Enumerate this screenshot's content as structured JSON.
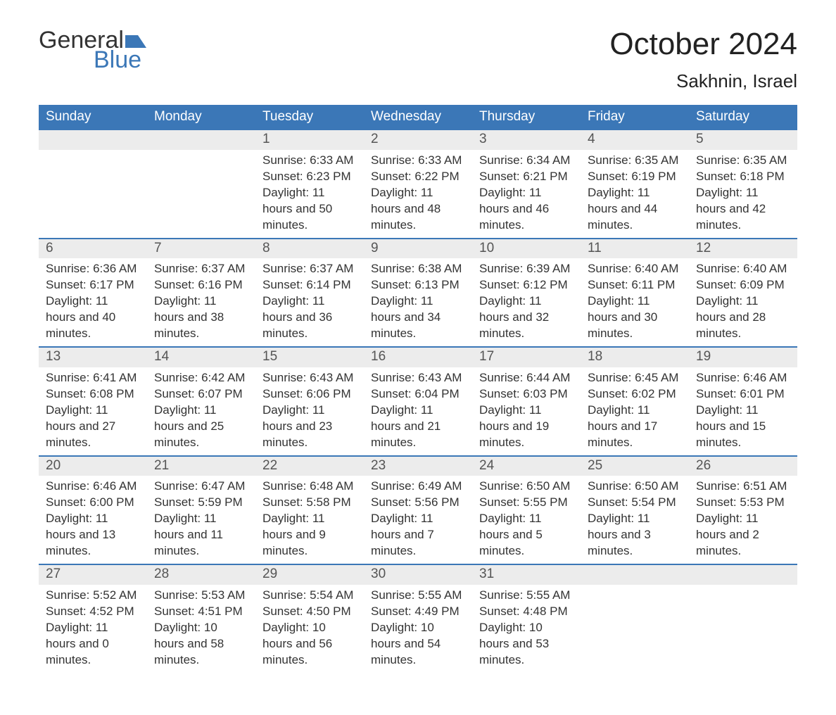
{
  "brand": {
    "word1": "General",
    "word2": "Blue",
    "accent_color": "#3b77b7"
  },
  "title": "October 2024",
  "location": "Sakhnin, Israel",
  "colors": {
    "header_bg": "#3b77b7",
    "header_fg": "#ffffff",
    "daynum_bg": "#ececec",
    "week_border": "#3b77b7",
    "text": "#333333",
    "page_bg": "#ffffff"
  },
  "fonts": {
    "title_size_pt": 33,
    "location_size_pt": 20,
    "header_size_pt": 14,
    "daynum_size_pt": 14,
    "body_size_pt": 13
  },
  "day_headers": [
    "Sunday",
    "Monday",
    "Tuesday",
    "Wednesday",
    "Thursday",
    "Friday",
    "Saturday"
  ],
  "weeks": [
    [
      null,
      null,
      {
        "n": "1",
        "sunrise": "6:33 AM",
        "sunset": "6:23 PM",
        "daylight": "11 hours and 50 minutes."
      },
      {
        "n": "2",
        "sunrise": "6:33 AM",
        "sunset": "6:22 PM",
        "daylight": "11 hours and 48 minutes."
      },
      {
        "n": "3",
        "sunrise": "6:34 AM",
        "sunset": "6:21 PM",
        "daylight": "11 hours and 46 minutes."
      },
      {
        "n": "4",
        "sunrise": "6:35 AM",
        "sunset": "6:19 PM",
        "daylight": "11 hours and 44 minutes."
      },
      {
        "n": "5",
        "sunrise": "6:35 AM",
        "sunset": "6:18 PM",
        "daylight": "11 hours and 42 minutes."
      }
    ],
    [
      {
        "n": "6",
        "sunrise": "6:36 AM",
        "sunset": "6:17 PM",
        "daylight": "11 hours and 40 minutes."
      },
      {
        "n": "7",
        "sunrise": "6:37 AM",
        "sunset": "6:16 PM",
        "daylight": "11 hours and 38 minutes."
      },
      {
        "n": "8",
        "sunrise": "6:37 AM",
        "sunset": "6:14 PM",
        "daylight": "11 hours and 36 minutes."
      },
      {
        "n": "9",
        "sunrise": "6:38 AM",
        "sunset": "6:13 PM",
        "daylight": "11 hours and 34 minutes."
      },
      {
        "n": "10",
        "sunrise": "6:39 AM",
        "sunset": "6:12 PM",
        "daylight": "11 hours and 32 minutes."
      },
      {
        "n": "11",
        "sunrise": "6:40 AM",
        "sunset": "6:11 PM",
        "daylight": "11 hours and 30 minutes."
      },
      {
        "n": "12",
        "sunrise": "6:40 AM",
        "sunset": "6:09 PM",
        "daylight": "11 hours and 28 minutes."
      }
    ],
    [
      {
        "n": "13",
        "sunrise": "6:41 AM",
        "sunset": "6:08 PM",
        "daylight": "11 hours and 27 minutes."
      },
      {
        "n": "14",
        "sunrise": "6:42 AM",
        "sunset": "6:07 PM",
        "daylight": "11 hours and 25 minutes."
      },
      {
        "n": "15",
        "sunrise": "6:43 AM",
        "sunset": "6:06 PM",
        "daylight": "11 hours and 23 minutes."
      },
      {
        "n": "16",
        "sunrise": "6:43 AM",
        "sunset": "6:04 PM",
        "daylight": "11 hours and 21 minutes."
      },
      {
        "n": "17",
        "sunrise": "6:44 AM",
        "sunset": "6:03 PM",
        "daylight": "11 hours and 19 minutes."
      },
      {
        "n": "18",
        "sunrise": "6:45 AM",
        "sunset": "6:02 PM",
        "daylight": "11 hours and 17 minutes."
      },
      {
        "n": "19",
        "sunrise": "6:46 AM",
        "sunset": "6:01 PM",
        "daylight": "11 hours and 15 minutes."
      }
    ],
    [
      {
        "n": "20",
        "sunrise": "6:46 AM",
        "sunset": "6:00 PM",
        "daylight": "11 hours and 13 minutes."
      },
      {
        "n": "21",
        "sunrise": "6:47 AM",
        "sunset": "5:59 PM",
        "daylight": "11 hours and 11 minutes."
      },
      {
        "n": "22",
        "sunrise": "6:48 AM",
        "sunset": "5:58 PM",
        "daylight": "11 hours and 9 minutes."
      },
      {
        "n": "23",
        "sunrise": "6:49 AM",
        "sunset": "5:56 PM",
        "daylight": "11 hours and 7 minutes."
      },
      {
        "n": "24",
        "sunrise": "6:50 AM",
        "sunset": "5:55 PM",
        "daylight": "11 hours and 5 minutes."
      },
      {
        "n": "25",
        "sunrise": "6:50 AM",
        "sunset": "5:54 PM",
        "daylight": "11 hours and 3 minutes."
      },
      {
        "n": "26",
        "sunrise": "6:51 AM",
        "sunset": "5:53 PM",
        "daylight": "11 hours and 2 minutes."
      }
    ],
    [
      {
        "n": "27",
        "sunrise": "5:52 AM",
        "sunset": "4:52 PM",
        "daylight": "11 hours and 0 minutes."
      },
      {
        "n": "28",
        "sunrise": "5:53 AM",
        "sunset": "4:51 PM",
        "daylight": "10 hours and 58 minutes."
      },
      {
        "n": "29",
        "sunrise": "5:54 AM",
        "sunset": "4:50 PM",
        "daylight": "10 hours and 56 minutes."
      },
      {
        "n": "30",
        "sunrise": "5:55 AM",
        "sunset": "4:49 PM",
        "daylight": "10 hours and 54 minutes."
      },
      {
        "n": "31",
        "sunrise": "5:55 AM",
        "sunset": "4:48 PM",
        "daylight": "10 hours and 53 minutes."
      },
      null,
      null
    ]
  ],
  "labels": {
    "sunrise": "Sunrise: ",
    "sunset": "Sunset: ",
    "daylight": "Daylight: "
  }
}
